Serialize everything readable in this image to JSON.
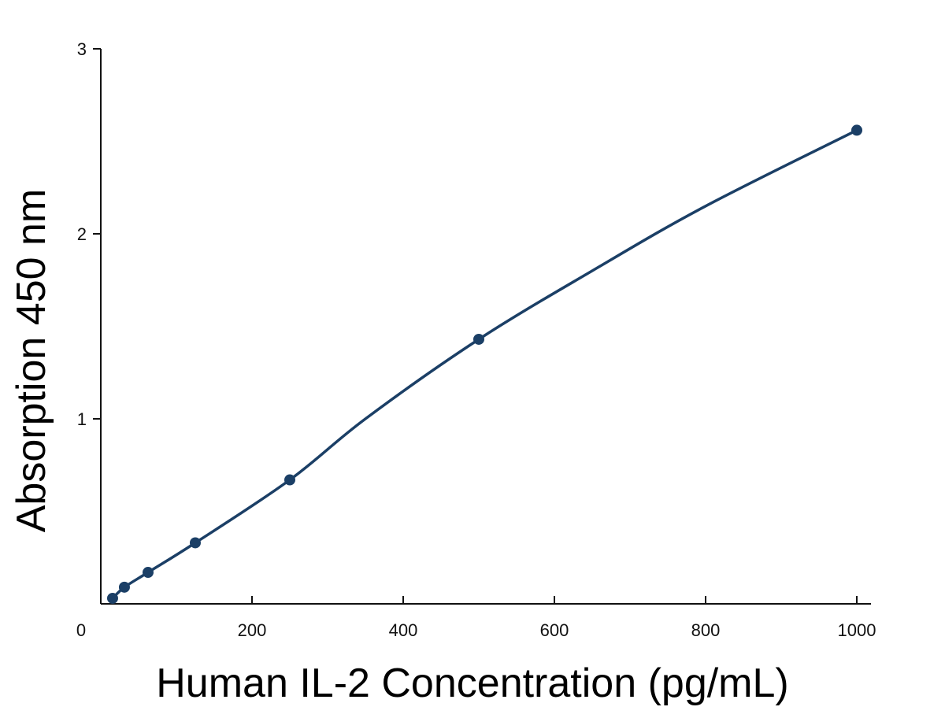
{
  "chart_data": {
    "type": "line",
    "title": "",
    "xlabel": "Human IL-2 Concentration (pg/mL)",
    "ylabel": "Absorption 450 nm",
    "xlim": [
      0,
      1000
    ],
    "ylim": [
      0,
      3
    ],
    "x_ticks": [
      "0",
      "200",
      "400",
      "600",
      "800",
      "1000"
    ],
    "y_ticks": [
      "1",
      "2",
      "3"
    ],
    "grid": false,
    "legend": "none",
    "color": "#1b3f66",
    "series": [
      {
        "points": [
          {
            "x": 15.6,
            "y": 0.03
          },
          {
            "x": 31.2,
            "y": 0.09
          },
          {
            "x": 62.5,
            "y": 0.17
          },
          {
            "x": 125,
            "y": 0.33
          },
          {
            "x": 250,
            "y": 0.67
          },
          {
            "x": 500,
            "y": 1.43
          },
          {
            "x": 1000,
            "y": 2.56
          }
        ],
        "curve": [
          {
            "x": 15.6,
            "y": 0.03
          },
          {
            "x": 31.2,
            "y": 0.09
          },
          {
            "x": 62.5,
            "y": 0.17
          },
          {
            "x": 125,
            "y": 0.33
          },
          {
            "x": 250,
            "y": 0.67
          },
          {
            "x": 350,
            "y": 1.0
          },
          {
            "x": 500,
            "y": 1.43
          },
          {
            "x": 650,
            "y": 1.8
          },
          {
            "x": 800,
            "y": 2.15
          },
          {
            "x": 1000,
            "y": 2.56
          }
        ]
      }
    ]
  }
}
